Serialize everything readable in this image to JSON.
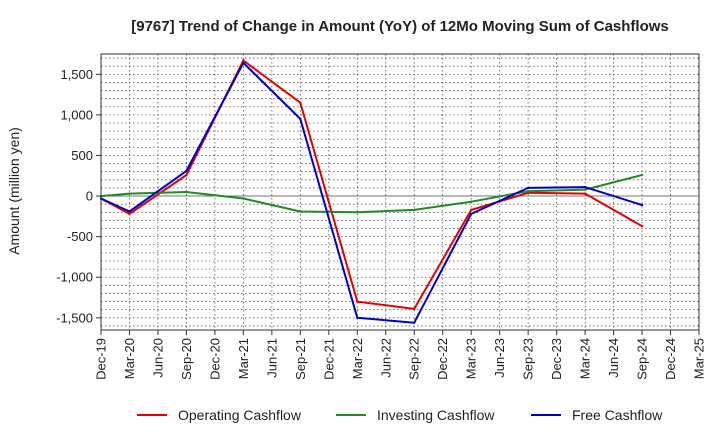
{
  "chart_data": {
    "type": "line",
    "title": "[9767]  Trend of Change in Amount (YoY) of 12Mo Moving Sum of Cashflows",
    "xlabel": "",
    "ylabel": "Amount (million yen)",
    "ylim": [
      -1650,
      1750
    ],
    "yticks": [
      -1500,
      -1000,
      -500,
      0,
      500,
      1000,
      1500
    ],
    "ytick_labels": [
      "-1,500",
      "-1,000",
      "-500",
      "0",
      "500",
      "1,000",
      "1,500"
    ],
    "categories": [
      "Dec-19",
      "Mar-20",
      "Jun-20",
      "Sep-20",
      "Dec-20",
      "Mar-21",
      "Jun-21",
      "Sep-21",
      "Dec-21",
      "Mar-22",
      "Jun-22",
      "Sep-22",
      "Dec-22",
      "Mar-23",
      "Jun-23",
      "Sep-23",
      "Dec-23",
      "Mar-24",
      "Jun-24",
      "Sep-24",
      "Dec-24",
      "Mar-25"
    ],
    "grid": true,
    "legend_position": "bottom",
    "series": [
      {
        "name": "Operating Cashflow",
        "color": "#e60000",
        "values": [
          -30,
          -220,
          null,
          260,
          null,
          1670,
          null,
          1150,
          null,
          -1300,
          null,
          -1390,
          null,
          -170,
          null,
          40,
          null,
          30,
          null,
          -370,
          null,
          null
        ]
      },
      {
        "name": "Investing Cashflow",
        "color": "#228b22",
        "values": [
          0,
          30,
          null,
          50,
          null,
          -30,
          null,
          -190,
          null,
          -200,
          null,
          -170,
          null,
          -70,
          null,
          60,
          null,
          80,
          null,
          260,
          null,
          null
        ]
      },
      {
        "name": "Free Cashflow",
        "color": "#0000cc",
        "values": [
          -30,
          -190,
          null,
          310,
          null,
          1640,
          null,
          950,
          null,
          -1500,
          null,
          -1560,
          null,
          -220,
          null,
          100,
          null,
          110,
          null,
          -110,
          null,
          null
        ]
      }
    ]
  }
}
